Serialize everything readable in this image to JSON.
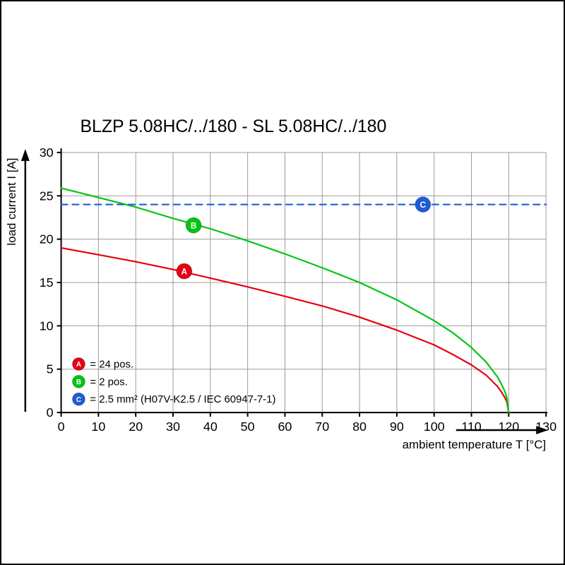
{
  "page": {
    "background": "#ffffff",
    "border_color": "#000000"
  },
  "chart_data": {
    "type": "line",
    "title": "BLZP 5.08HC/../180 - SL 5.08HC/../180",
    "xlabel": "ambient temperature T [°C]",
    "ylabel": "load current I [A]",
    "xlim": [
      0,
      130
    ],
    "ylim": [
      0,
      30
    ],
    "x_ticks": [
      0,
      10,
      20,
      30,
      40,
      50,
      60,
      70,
      80,
      90,
      100,
      110,
      120,
      130
    ],
    "y_ticks": [
      0,
      5,
      10,
      15,
      20,
      25,
      30
    ],
    "grid": true,
    "grid_color": "#9b9b9b",
    "axis_color": "#000000",
    "legend_position": "bottom-left-inside",
    "series": [
      {
        "id": "A",
        "legend_label": "= 24 pos.",
        "color": "#e60012",
        "line_style": "solid",
        "points": [
          [
            0,
            19.0
          ],
          [
            10,
            18.2
          ],
          [
            20,
            17.4
          ],
          [
            30,
            16.5
          ],
          [
            40,
            15.5
          ],
          [
            50,
            14.5
          ],
          [
            60,
            13.4
          ],
          [
            70,
            12.3
          ],
          [
            80,
            11.0
          ],
          [
            90,
            9.5
          ],
          [
            100,
            7.8
          ],
          [
            105,
            6.7
          ],
          [
            110,
            5.5
          ],
          [
            114,
            4.3
          ],
          [
            117,
            3.0
          ],
          [
            118,
            2.4
          ],
          [
            119,
            1.7
          ],
          [
            119.5,
            1.2
          ],
          [
            120,
            0
          ]
        ],
        "marker": {
          "x": 33,
          "y": 16.3,
          "letter": "A"
        }
      },
      {
        "id": "B",
        "legend_label": "= 2 pos.",
        "color": "#00c613",
        "line_style": "solid",
        "points": [
          [
            0,
            25.9
          ],
          [
            10,
            24.8
          ],
          [
            20,
            23.7
          ],
          [
            30,
            22.4
          ],
          [
            40,
            21.2
          ],
          [
            50,
            19.8
          ],
          [
            60,
            18.3
          ],
          [
            70,
            16.7
          ],
          [
            80,
            15.0
          ],
          [
            90,
            13.0
          ],
          [
            100,
            10.6
          ],
          [
            105,
            9.2
          ],
          [
            110,
            7.5
          ],
          [
            114,
            5.8
          ],
          [
            117,
            4.1
          ],
          [
            118,
            3.3
          ],
          [
            119,
            2.4
          ],
          [
            119.5,
            1.7
          ],
          [
            120,
            0
          ]
        ],
        "marker": {
          "x": 35.5,
          "y": 21.6,
          "letter": "B"
        }
      },
      {
        "id": "C",
        "legend_label": "= 2.5 mm² (H07V-K2.5 / IEC 60947-7-1)",
        "color": "#1e5cd7",
        "line_style": "dashed",
        "points": [
          [
            0,
            24
          ],
          [
            130,
            24
          ]
        ],
        "marker": {
          "x": 97,
          "y": 24,
          "letter": "C"
        }
      }
    ]
  }
}
